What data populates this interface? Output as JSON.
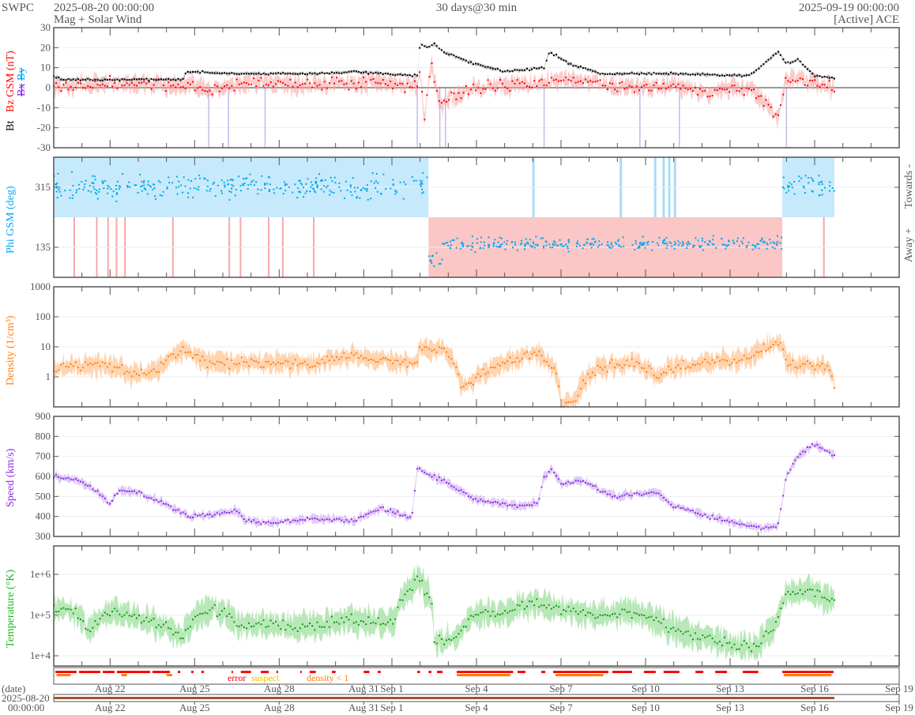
{
  "header": {
    "org": "SWPC",
    "start": "2025-08-20 00:00:00",
    "subtitle": "Mag + Solar Wind",
    "span": "30 days@30 min",
    "end": "2025-09-19 00:00:00",
    "source": "[Active] ACE"
  },
  "colors": {
    "bt": "#000000",
    "bz": "#ff0000",
    "bx": "#8a2be2",
    "by": "#00a8f0",
    "density": "#ff7f0e",
    "speed": "#8a2be2",
    "temp": "#1fb51f",
    "towards": "#c6eafb",
    "away": "#fbc6c6",
    "axis": "#555555"
  },
  "labels": {
    "mag_bt": "Bt",
    "mag_bz": "Bz GSM (nT)",
    "mag_bx": "Bx",
    "mag_by": "By",
    "phi": "Phi GSM (deg)",
    "towards": "Towards -",
    "away": "Away +",
    "density": "Density (1/cm³)",
    "speed": "Speed (km/s)",
    "temperature": "Temperature (°K)",
    "flag_error": "error",
    "flag_suspect": "suspect",
    "flag_density": "density < 1",
    "date_label": "(date)",
    "date_start_1": "2025-08-20",
    "date_start_2": "00:00:00"
  },
  "chart_data": [
    {
      "type": "line",
      "id": "mag",
      "ylabel": "Bt / Bz GSM (nT)",
      "ylim": [
        -30,
        30
      ],
      "yticks": [
        "30",
        "20",
        "10",
        "0",
        "-10",
        "-20",
        "-30"
      ],
      "ytick_values": [
        30,
        20,
        10,
        0,
        -10,
        -20,
        -30
      ],
      "series": [
        {
          "name": "Bt",
          "points": [
            [
              0,
              6
            ],
            [
              0.3,
              4
            ],
            [
              4.6,
              4
            ],
            [
              4.7,
              8
            ],
            [
              6.5,
              7
            ],
            [
              9.3,
              7
            ],
            [
              10.7,
              8
            ],
            [
              12.9,
              6
            ],
            [
              13.0,
              22
            ],
            [
              13.3,
              20
            ],
            [
              13.5,
              22
            ],
            [
              13.8,
              18
            ],
            [
              14.9,
              12
            ],
            [
              16.0,
              8
            ],
            [
              17.4,
              10
            ],
            [
              17.6,
              18
            ],
            [
              18.3,
              12
            ],
            [
              19.4,
              7
            ],
            [
              21.9,
              7
            ],
            [
              24.7,
              6
            ],
            [
              25.7,
              18
            ],
            [
              26.0,
              12
            ],
            [
              26.4,
              14
            ],
            [
              27.0,
              6
            ],
            [
              27.7,
              5
            ]
          ]
        },
        {
          "name": "Bz GSM",
          "points": [
            [
              0,
              0
            ],
            [
              2,
              2
            ],
            [
              5,
              1
            ],
            [
              5.5,
              -2
            ],
            [
              7,
              3
            ],
            [
              9,
              1
            ],
            [
              11,
              3
            ],
            [
              12.9,
              1
            ],
            [
              13.0,
              10
            ],
            [
              13.15,
              -15
            ],
            [
              13.4,
              12
            ],
            [
              13.7,
              -8
            ],
            [
              14.9,
              0
            ],
            [
              16,
              1
            ],
            [
              17.4,
              2
            ],
            [
              18,
              5
            ],
            [
              20,
              0
            ],
            [
              22,
              1
            ],
            [
              23,
              -2
            ],
            [
              24.7,
              0
            ],
            [
              25.7,
              -15
            ],
            [
              26.0,
              5
            ],
            [
              27.0,
              2
            ],
            [
              27.7,
              0
            ]
          ]
        }
      ],
      "bx_spikes": [
        5.5,
        6.2,
        7.5,
        12.9,
        13.7,
        13.9,
        17.4,
        20.8,
        22.2,
        26.0
      ]
    },
    {
      "type": "scatter",
      "id": "phi",
      "ylabel": "Phi GSM (deg)",
      "ylim": [
        45,
        405
      ],
      "yticks": [
        "315",
        "135"
      ],
      "ytick_values": [
        315,
        135
      ],
      "sectors": [
        [
          0,
          13.3,
          "towards",
          315
        ],
        [
          13.3,
          13.8,
          "away",
          100
        ],
        [
          13.8,
          25.85,
          "away",
          145
        ],
        [
          25.85,
          27.7,
          "towards",
          320
        ]
      ],
      "away_spikes": [
        0.7,
        1.5,
        1.9,
        2.2,
        2.5,
        4.2,
        6.2,
        6.6,
        7.6,
        8.1,
        9.2,
        27.3
      ],
      "towards_spikes": [
        16.98,
        20.08,
        21.3,
        21.6,
        21.8,
        22.0
      ]
    },
    {
      "type": "line",
      "id": "density",
      "ylabel": "Density (1/cm³)",
      "log": true,
      "ylim": [
        0.1,
        1000
      ],
      "yticks": [
        "1000",
        "100",
        "10",
        "1"
      ],
      "ytick_values": [
        1000,
        100,
        10,
        1
      ],
      "points": [
        [
          0,
          2
        ],
        [
          2,
          2.5
        ],
        [
          2.6,
          1.2
        ],
        [
          3.7,
          1.5
        ],
        [
          4.7,
          8
        ],
        [
          5.4,
          3
        ],
        [
          6.5,
          3
        ],
        [
          7.9,
          3
        ],
        [
          9.3,
          3
        ],
        [
          10.7,
          5
        ],
        [
          12.1,
          3
        ],
        [
          12.9,
          3
        ],
        [
          13.0,
          10
        ],
        [
          13.8,
          8
        ],
        [
          14.4,
          0.5
        ],
        [
          14.9,
          0.8
        ],
        [
          16.0,
          3
        ],
        [
          17.2,
          6
        ],
        [
          17.7,
          2
        ],
        [
          18.0,
          0.1
        ],
        [
          18.6,
          0.2
        ],
        [
          19.4,
          2
        ],
        [
          20.5,
          3
        ],
        [
          21.4,
          1
        ],
        [
          21.9,
          2
        ],
        [
          23.3,
          3
        ],
        [
          24.7,
          4
        ],
        [
          25.7,
          15
        ],
        [
          26.0,
          3
        ],
        [
          27.5,
          2
        ],
        [
          27.7,
          0.5
        ]
      ]
    },
    {
      "type": "line",
      "id": "speed",
      "ylabel": "Speed (km/s)",
      "ylim": [
        300,
        900
      ],
      "yticks": [
        "900",
        "800",
        "700",
        "600",
        "500",
        "400",
        "300"
      ],
      "ytick_values": [
        900,
        800,
        700,
        600,
        500,
        400,
        300
      ],
      "points": [
        [
          0,
          600
        ],
        [
          0.9,
          580
        ],
        [
          1.6,
          520
        ],
        [
          2.0,
          460
        ],
        [
          2.3,
          530
        ],
        [
          3.0,
          520
        ],
        [
          3.7,
          480
        ],
        [
          4.8,
          400
        ],
        [
          5.7,
          410
        ],
        [
          6.5,
          430
        ],
        [
          6.8,
          380
        ],
        [
          7.6,
          370
        ],
        [
          9.3,
          390
        ],
        [
          10.7,
          380
        ],
        [
          11.6,
          440
        ],
        [
          12.7,
          390
        ],
        [
          12.9,
          640
        ],
        [
          13.8,
          580
        ],
        [
          14.9,
          490
        ],
        [
          16.0,
          460
        ],
        [
          16.6,
          450
        ],
        [
          17.2,
          470
        ],
        [
          17.4,
          600
        ],
        [
          17.7,
          640
        ],
        [
          18.0,
          560
        ],
        [
          18.8,
          580
        ],
        [
          19.4,
          530
        ],
        [
          20.0,
          500
        ],
        [
          20.5,
          510
        ],
        [
          21.4,
          520
        ],
        [
          21.9,
          460
        ],
        [
          23.3,
          400
        ],
        [
          24.4,
          360
        ],
        [
          25.3,
          340
        ],
        [
          25.7,
          360
        ],
        [
          26.0,
          600
        ],
        [
          26.4,
          700
        ],
        [
          27.0,
          760
        ],
        [
          27.7,
          710
        ]
      ]
    },
    {
      "type": "line",
      "id": "temperature",
      "ylabel": "Temperature (°K)",
      "log": true,
      "ylim": [
        5600,
        5000000
      ],
      "yticks": [
        "1e+6",
        "1e+5",
        "1e+4"
      ],
      "ytick_values": [
        1000000,
        100000,
        10000
      ],
      "points": [
        [
          0,
          150000
        ],
        [
          0.9,
          100000
        ],
        [
          1.2,
          40000
        ],
        [
          2.0,
          120000
        ],
        [
          3.7,
          60000
        ],
        [
          4.5,
          30000
        ],
        [
          5.7,
          150000
        ],
        [
          6.5,
          60000
        ],
        [
          9.3,
          50000
        ],
        [
          10.4,
          80000
        ],
        [
          12.1,
          60000
        ],
        [
          12.9,
          700000
        ],
        [
          13.4,
          200000
        ],
        [
          13.5,
          20000
        ],
        [
          14.4,
          30000
        ],
        [
          14.9,
          100000
        ],
        [
          16.0,
          120000
        ],
        [
          17.2,
          200000
        ],
        [
          17.7,
          150000
        ],
        [
          19.4,
          100000
        ],
        [
          20.5,
          120000
        ],
        [
          21.6,
          60000
        ],
        [
          22.8,
          30000
        ],
        [
          23.9,
          20000
        ],
        [
          25.0,
          15000
        ],
        [
          25.6,
          50000
        ],
        [
          26.0,
          300000
        ],
        [
          26.7,
          400000
        ],
        [
          27.7,
          200000
        ]
      ]
    },
    {
      "type": "bar",
      "id": "flags",
      "error": [
        [
          0.06,
          0.81
        ],
        [
          0.9,
          1.65
        ],
        [
          1.74,
          2.16
        ],
        [
          2.24,
          3.42
        ],
        [
          3.5,
          4.12
        ],
        [
          4.4,
          4.49
        ],
        [
          4.88,
          4.96
        ],
        [
          5.24,
          5.33
        ],
        [
          6.31,
          6.36
        ],
        [
          6.64,
          7.0
        ],
        [
          7.35,
          7.63
        ],
        [
          7.9,
          7.96
        ],
        [
          8.75,
          8.8
        ],
        [
          9.08,
          9.3
        ],
        [
          9.87,
          10.0
        ],
        [
          11.0,
          11.2
        ],
        [
          11.5,
          11.6
        ],
        [
          12.9,
          13.0
        ],
        [
          13.3,
          13.4
        ],
        [
          13.6,
          13.8
        ],
        [
          14.3,
          16.3
        ],
        [
          16.46,
          16.74
        ],
        [
          17.3,
          17.44
        ],
        [
          17.72,
          19.68
        ],
        [
          19.82,
          20.52
        ],
        [
          20.94,
          21.36
        ],
        [
          21.64,
          22.2
        ],
        [
          22.77,
          23.05
        ],
        [
          23.47,
          23.89
        ],
        [
          24.45,
          25.0
        ],
        [
          25.85,
          27.67
        ]
      ],
      "density_lt_1": [
        [
          0.1,
          0.6
        ],
        [
          2.4,
          2.6
        ],
        [
          4.0,
          4.2
        ],
        [
          14.3,
          16.2
        ],
        [
          17.8,
          19.5
        ],
        [
          25.9,
          27.6
        ]
      ]
    },
    {
      "type": "axis",
      "id": "time",
      "xlim_days": 30,
      "xticks": [
        {
          "day": 2,
          "label": "Aug 22"
        },
        {
          "day": 5,
          "label": "Aug 25"
        },
        {
          "day": 8,
          "label": "Aug 28"
        },
        {
          "day": 11,
          "label": "Aug 31"
        },
        {
          "day": 12,
          "label": "Sep 1"
        },
        {
          "day": 15,
          "label": "Sep 4"
        },
        {
          "day": 18,
          "label": "Sep 7"
        },
        {
          "day": 21,
          "label": "Sep 10"
        },
        {
          "day": 24,
          "label": "Sep 13"
        },
        {
          "day": 27,
          "label": "Sep 16"
        },
        {
          "day": 30,
          "label": "Sep 19"
        }
      ]
    }
  ]
}
